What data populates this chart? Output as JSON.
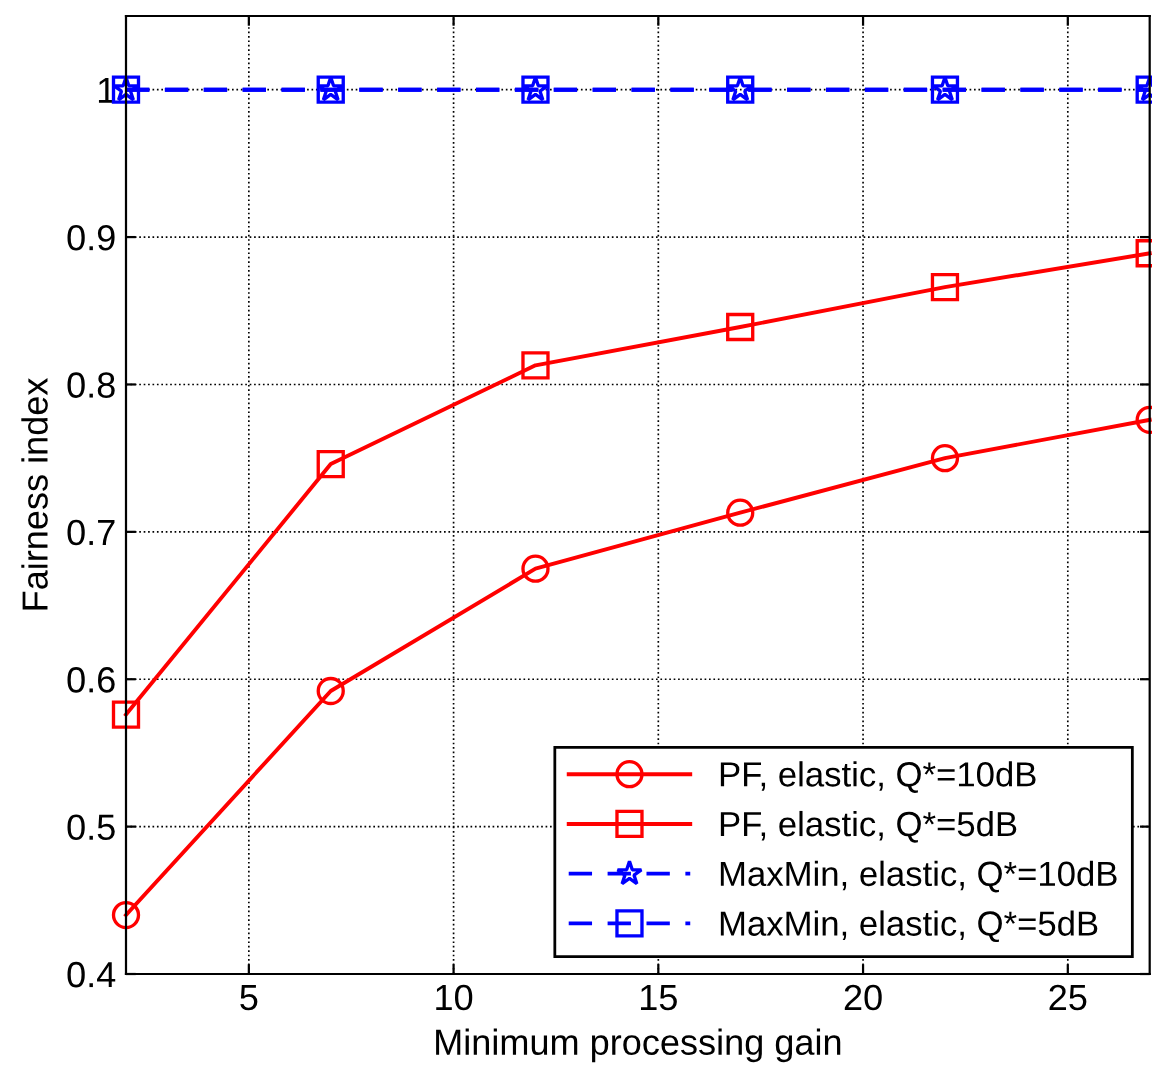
{
  "chart_data": {
    "type": "line",
    "xlabel": "Minimum processing gain",
    "ylabel": "Fairness index",
    "x": [
      2,
      7,
      12,
      17,
      22,
      27
    ],
    "series": [
      {
        "name": "PF, elastic, Q*=10dB",
        "color": "#ff0000",
        "marker": "circle",
        "line_style": "solid",
        "values": [
          0.44,
          0.592,
          0.675,
          0.713,
          0.75,
          0.776
        ]
      },
      {
        "name": "PF, elastic, Q*=5dB",
        "color": "#ff0000",
        "marker": "square",
        "line_style": "solid",
        "values": [
          0.576,
          0.746,
          0.813,
          0.839,
          0.866,
          0.889
        ]
      },
      {
        "name": "MaxMin, elastic, Q*=10dB",
        "color": "#0000ff",
        "marker": "star",
        "line_style": "dashed",
        "values": [
          1,
          1,
          1,
          1,
          1,
          1
        ]
      },
      {
        "name": "MaxMin, elastic, Q*=5dB",
        "color": "#0000ff",
        "marker": "square",
        "line_style": "dashed",
        "values": [
          1,
          1,
          1,
          1,
          1,
          1
        ]
      }
    ],
    "xlim": [
      2,
      27
    ],
    "xticks": [
      5,
      10,
      15,
      20,
      25
    ],
    "ylim": [
      0.4,
      1.05
    ],
    "yticks": [
      0.4,
      0.5,
      0.6,
      0.7,
      0.8,
      0.9,
      1
    ],
    "grid": true,
    "legend": "bottom right"
  }
}
